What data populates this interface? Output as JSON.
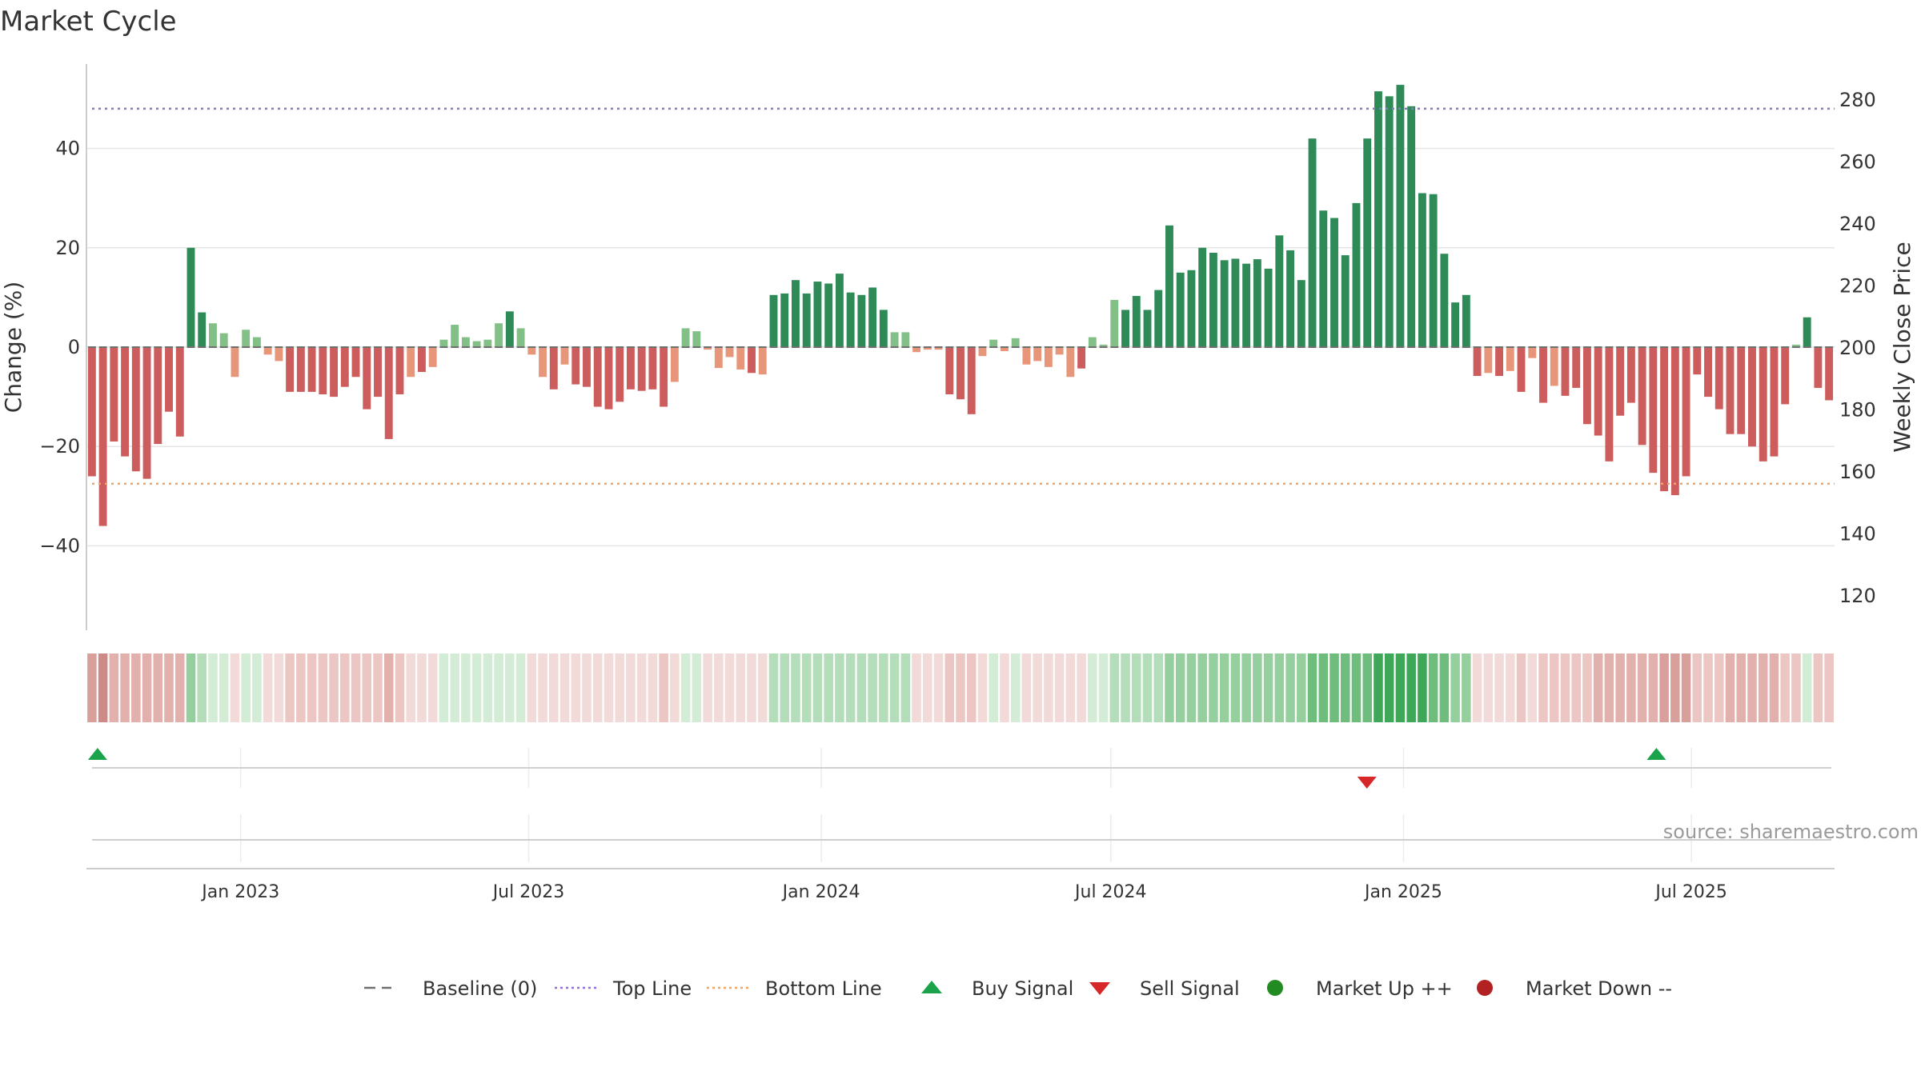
{
  "title": "Market Cycle",
  "source_text": "source: sharemaestro.com",
  "colors": {
    "positive_dark": "#2e8b57",
    "positive_light": "#82c088",
    "negative_dark": "#cd5c5c",
    "negative_light": "#e8967a",
    "top_line": "#9370db",
    "bottom_line": "#f4a460",
    "buy_signal": "#1aa34a",
    "sell_signal": "#d62828",
    "market_up": "#228b22",
    "market_down": "#b22222",
    "grid": "#e6e6e6",
    "text": "#333333"
  },
  "chart_data": {
    "type": "bar",
    "title": "Market Cycle",
    "y_left_label": "Change (%)",
    "y_right_label": "Weekly Close Price",
    "y_left_ticks": [
      -40,
      -20,
      0,
      20,
      40
    ],
    "y_left_range": [
      -57,
      57
    ],
    "y_right_ticks": [
      120,
      140,
      160,
      180,
      200,
      220,
      240,
      260,
      280
    ],
    "x_start_date": "2022-09-26",
    "x_end_date": "2025-09-29",
    "x_ticks": [
      {
        "label": "Jan 2023",
        "date": "2023-01-01"
      },
      {
        "label": "Jul 2023",
        "date": "2023-07-01"
      },
      {
        "label": "Jan 2024",
        "date": "2024-01-01"
      },
      {
        "label": "Jul 2024",
        "date": "2024-07-01"
      },
      {
        "label": "Jan 2025",
        "date": "2025-01-01"
      },
      {
        "label": "Jul 2025",
        "date": "2025-07-01"
      }
    ],
    "top_line": 48,
    "bottom_line": -27.5,
    "grid": true,
    "legend_position": "bottom-center",
    "series": [
      {
        "name": "Change (%)",
        "values": [
          -26,
          -36,
          -19,
          -22,
          -25,
          -26.5,
          -19.5,
          -13,
          -18,
          20,
          7,
          4.8,
          2.8,
          -6,
          3.5,
          2,
          -1.5,
          -2.8,
          -9,
          -9,
          -9,
          -9.5,
          -10,
          -8,
          -6,
          -12.5,
          -10,
          -18.5,
          -9.5,
          -6,
          -5,
          -4,
          1.5,
          4.5,
          2,
          1.2,
          1.5,
          4.8,
          7.2,
          3.8,
          -1.5,
          -6,
          -8.5,
          -3.5,
          -7.5,
          -8,
          -12,
          -12.5,
          -11,
          -8.5,
          -8.8,
          -8.5,
          -12,
          -7,
          3.8,
          3.2,
          -0.5,
          -4.2,
          -2,
          -4.5,
          -5.2,
          -5.5,
          10.5,
          10.8,
          13.5,
          10.8,
          13.2,
          12.8,
          14.8,
          11,
          10.5,
          12,
          7.5,
          3,
          3,
          -1,
          -0.5,
          -0.5,
          -9.5,
          -10.5,
          -13.5,
          -1.8,
          1.5,
          -0.8,
          1.8,
          -3.5,
          -2.8,
          -4,
          -1.5,
          -6,
          -4.3,
          2,
          0.5,
          9.5,
          7.5,
          10.3,
          7.5,
          11.5,
          24.5,
          15,
          15.5,
          20,
          19,
          17.5,
          17.8,
          16.8,
          17.7,
          15.8,
          22.5,
          19.5,
          13.5,
          42,
          27.5,
          26,
          18.5,
          29,
          42,
          51.5,
          50.5,
          52.8,
          48.5,
          31,
          30.8,
          18.8,
          9,
          10.5,
          -5.8,
          -5.2,
          -5.8,
          -4.8,
          -9,
          -2.2,
          -11.2,
          -7.8,
          -9.8,
          -8.2,
          -15.5,
          -17.8,
          -23,
          -13.8,
          -11.2,
          -19.7,
          -25.3,
          -29,
          -29.8,
          -26,
          -5.5,
          -10,
          -12.5,
          -17.5,
          -17.5,
          -20,
          -23,
          -22,
          -11.5,
          0.5,
          6,
          -8.2,
          -10.7
        ]
      },
      {
        "name": "Signal Strength",
        "values": [
          -4,
          -5,
          -3,
          -3,
          -3,
          -3,
          -3,
          -3,
          -3,
          3,
          2,
          1,
          1,
          -1,
          1,
          1,
          -1,
          -1,
          -2,
          -2,
          -2,
          -2,
          -2,
          -2,
          -2,
          -2,
          -2,
          -3,
          -2,
          -1,
          -1,
          -1,
          1,
          1,
          1,
          1,
          1,
          1,
          1,
          1,
          -1,
          -1,
          -1,
          -1,
          -1,
          -1,
          -1,
          -1,
          -1,
          -1,
          -1,
          -1,
          -2,
          -1,
          1,
          1,
          -1,
          -1,
          -1,
          -1,
          -1,
          -1,
          2,
          2,
          2,
          2,
          2,
          2,
          2,
          2,
          2,
          2,
          2,
          2,
          2,
          -1,
          -1,
          -1,
          -2,
          -2,
          -2,
          -1,
          1,
          -1,
          1,
          -1,
          -1,
          -1,
          -1,
          -1,
          -1,
          1,
          1,
          2,
          2,
          2,
          2,
          2,
          3,
          3,
          3,
          3,
          3,
          3,
          3,
          3,
          3,
          3,
          3,
          3,
          3,
          4,
          4,
          4,
          4,
          4,
          4,
          5,
          5,
          5,
          5,
          5,
          4,
          4,
          3,
          3,
          -1,
          -1,
          -1,
          -1,
          -2,
          -1,
          -2,
          -2,
          -2,
          -2,
          -2,
          -3,
          -3,
          -3,
          -3,
          -3,
          -3,
          -4,
          -4,
          -4,
          -2,
          -2,
          -2,
          -3,
          -3,
          -3,
          -3,
          -3,
          -2,
          -2,
          1,
          -2,
          -2
        ]
      }
    ],
    "buy_signals": [
      "2022-10-03",
      "2025-06-09"
    ],
    "sell_signals": [
      "2024-12-09"
    ]
  },
  "legend": [
    {
      "name": "Baseline (0)",
      "kind": "dash-long",
      "color": "#707070"
    },
    {
      "name": "Top Line",
      "kind": "dotted",
      "color": "#9370db"
    },
    {
      "name": "Bottom Line",
      "kind": "dotted",
      "color": "#f4a460"
    },
    {
      "name": "Buy Signal",
      "kind": "triangle-up",
      "color": "#1aa34a"
    },
    {
      "name": "Sell Signal",
      "kind": "triangle-down",
      "color": "#d62828"
    },
    {
      "name": "Market Up ++",
      "kind": "circle",
      "color": "#228b22"
    },
    {
      "name": "Market Down --",
      "kind": "circle",
      "color": "#b22222"
    }
  ]
}
